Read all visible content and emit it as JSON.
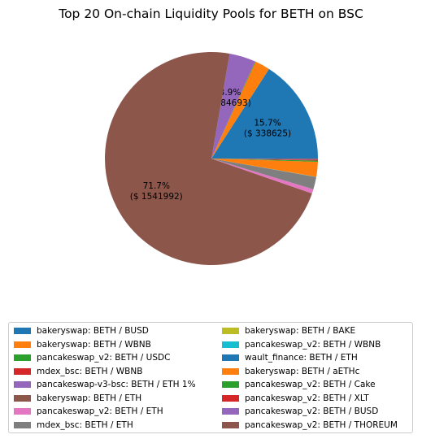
{
  "chart_data": {
    "type": "pie",
    "title": "Top 20 On-chain Liquidity Pools for BETH on BSC",
    "legend_placement": "bottom",
    "slices": [
      {
        "name": "bakeryswap: BETH / BUSD",
        "value": 338625,
        "percent_label": "15.7%",
        "value_label": "($ 338625)",
        "color": "#1f77b4"
      },
      {
        "name": "bakeryswap: BETH / WBNB",
        "value": 48000,
        "color": "#ff7f0e"
      },
      {
        "name": "pancakeswap_v2: BETH / USDC",
        "value": 2000,
        "color": "#2ca02c"
      },
      {
        "name": "mdex_bsc: BETH / WBNB",
        "value": 500,
        "color": "#d62728"
      },
      {
        "name": "pancakeswap-v3-bsc: BETH / ETH 1%",
        "value": 84693,
        "percent_label": "3.9%",
        "value_label": "($ 84693)",
        "color": "#9467bd"
      },
      {
        "name": "bakeryswap: BETH / ETH",
        "value": 1541992,
        "percent_label": "71.7%",
        "value_label": "($ 1541992)",
        "color": "#8c564b"
      },
      {
        "name": "pancakeswap_v2: BETH / ETH",
        "value": 14000,
        "color": "#e377c2"
      },
      {
        "name": "mdex_bsc: BETH / ETH",
        "value": 40000,
        "color": "#7f7f7f"
      },
      {
        "name": "bakeryswap: BETH / BAKE",
        "value": 300,
        "color": "#bcbd22"
      },
      {
        "name": "pancakeswap_v2: BETH / WBNB",
        "value": 300,
        "color": "#17becf"
      },
      {
        "name": "wault_finance: BETH / ETH",
        "value": 200,
        "color": "#1f77b4"
      },
      {
        "name": "bakeryswap: BETH / aETHc",
        "value": 48000,
        "color": "#ff7f0e"
      },
      {
        "name": "pancakeswap_v2: BETH / Cake",
        "value": 4000,
        "color": "#2ca02c"
      },
      {
        "name": "pancakeswap_v2: BETH / XLT",
        "value": 2500,
        "color": "#d62728"
      },
      {
        "name": "pancakeswap_v2: BETH / BUSD",
        "value": 2000,
        "color": "#9467bd"
      },
      {
        "name": "pancakeswap_v2: BETH / THOREUM",
        "value": 2000,
        "color": "#8c564b"
      }
    ]
  }
}
